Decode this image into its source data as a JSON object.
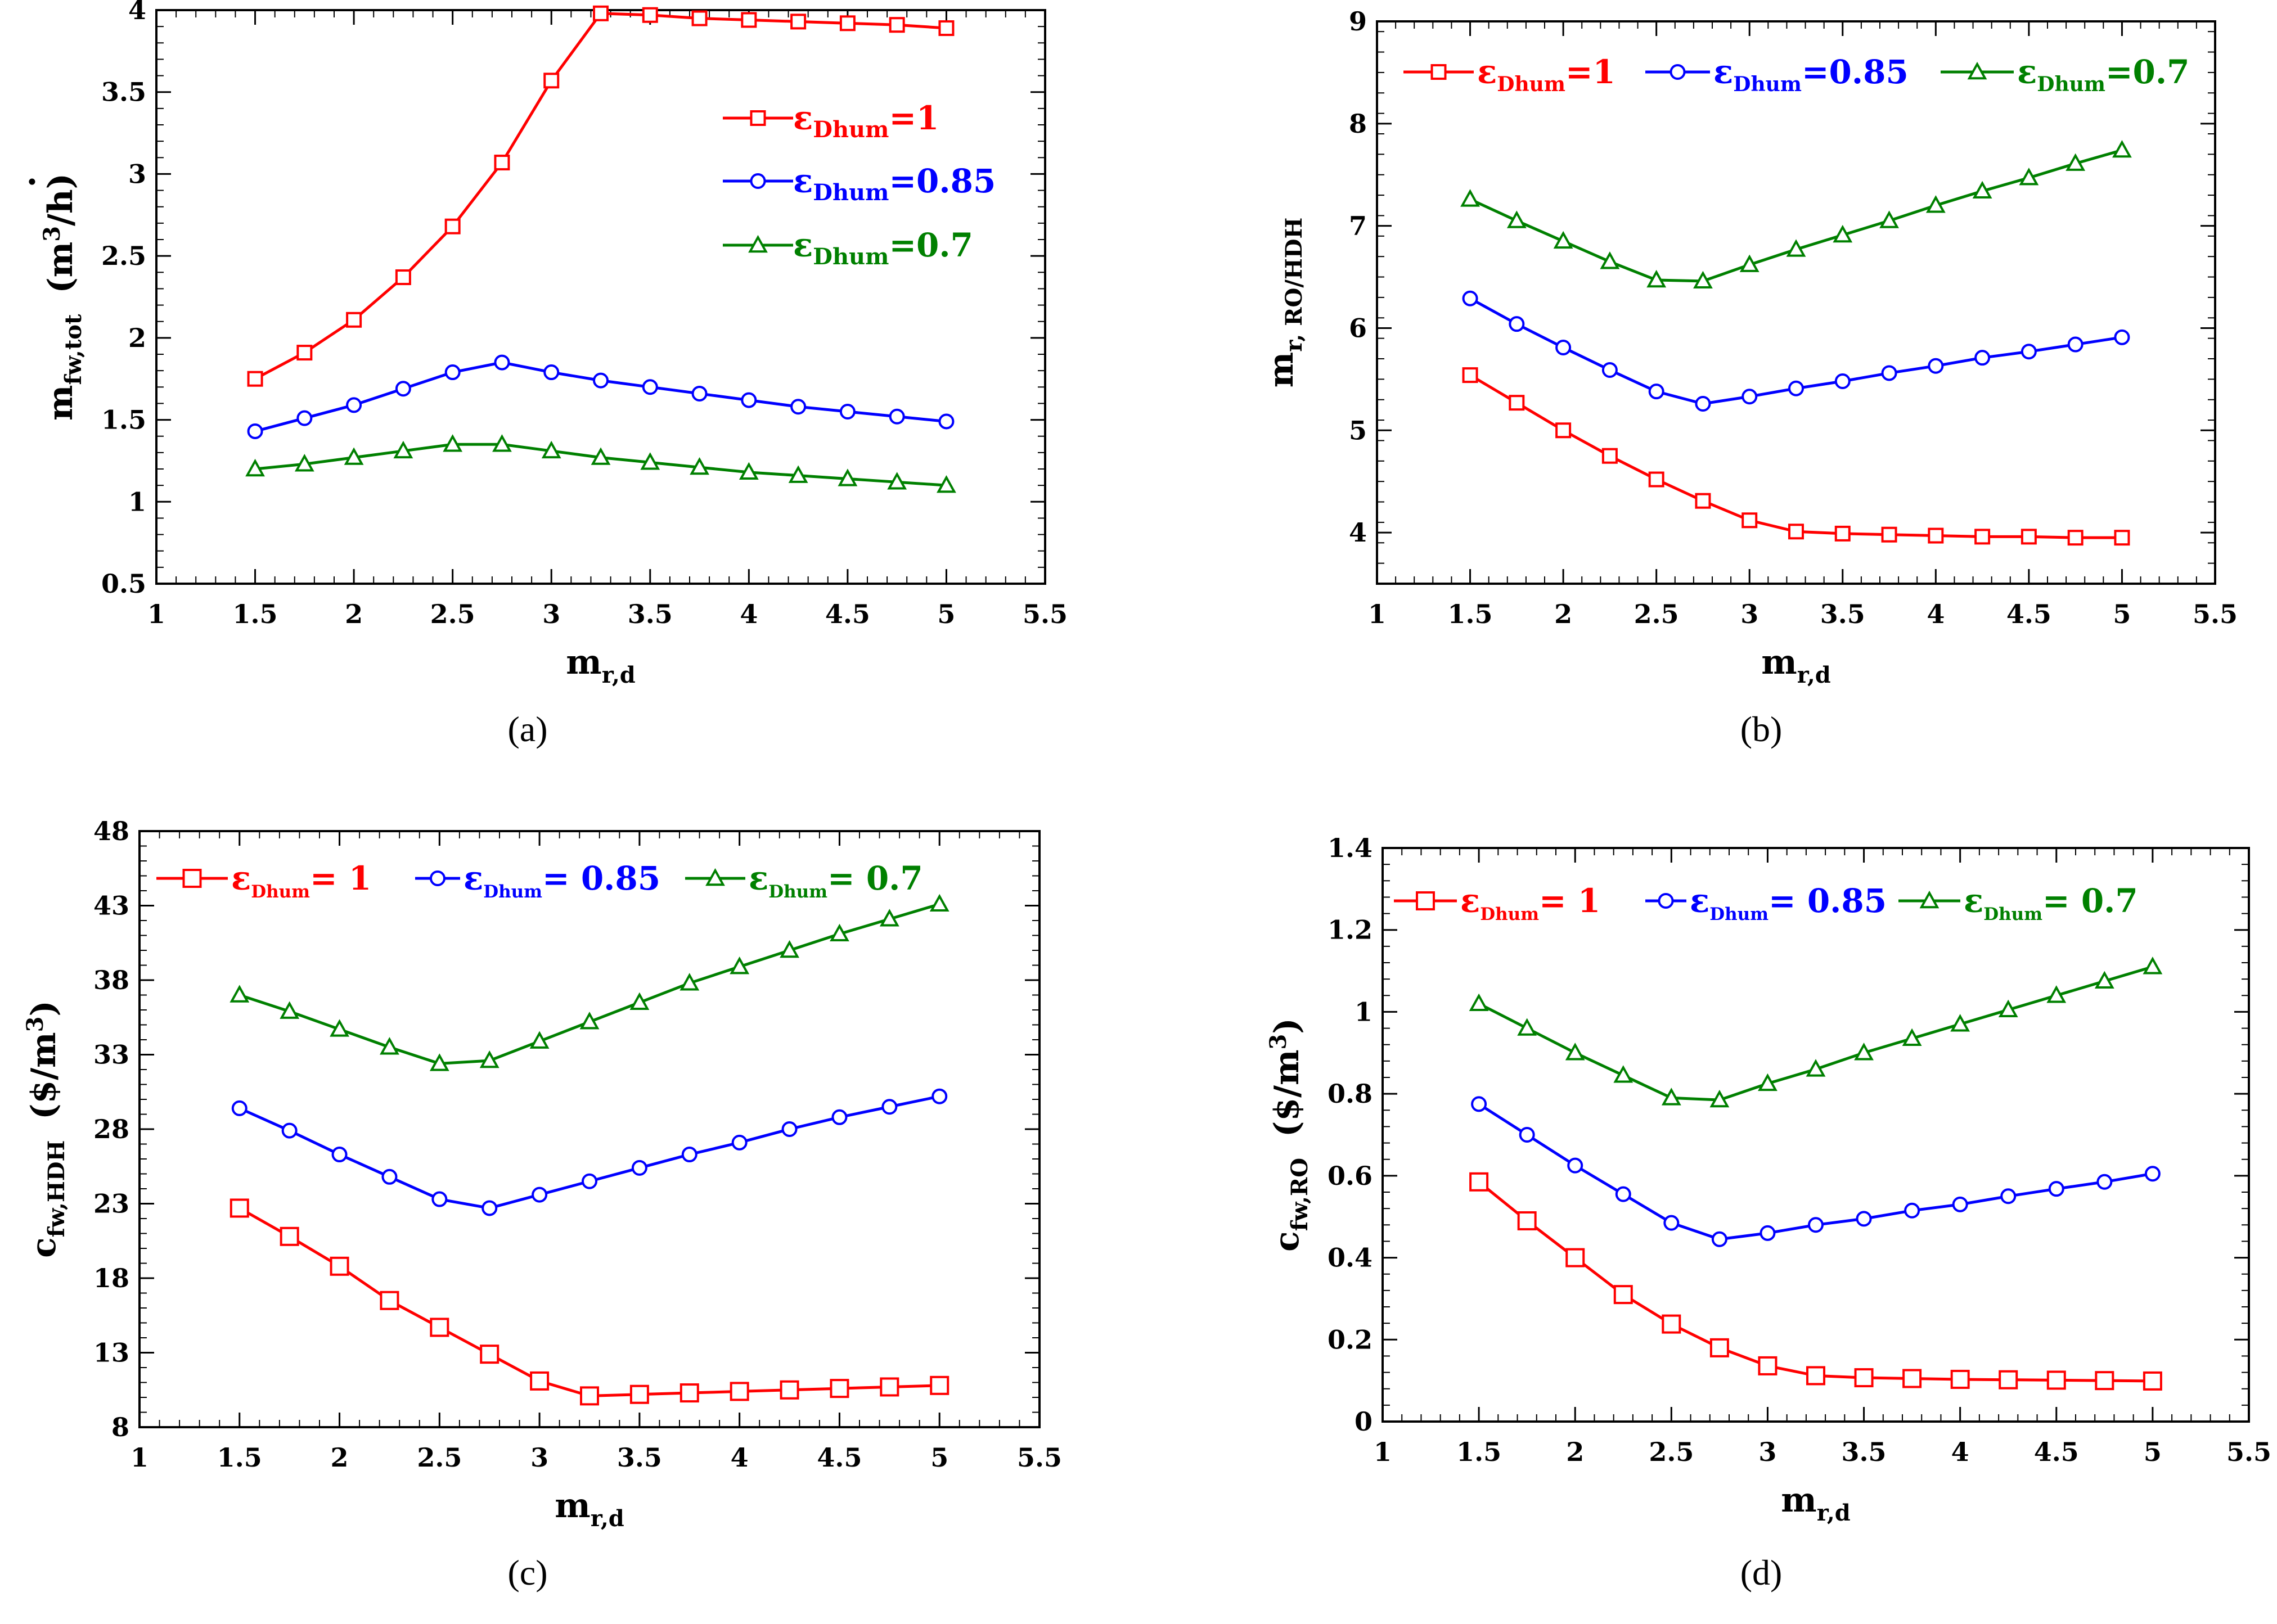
{
  "colors": {
    "s1": "#ff0000",
    "s2": "#0000ff",
    "s3": "#008000"
  },
  "chart_data": [
    {
      "id": "a",
      "type": "line",
      "panel_label": "(a)",
      "xlabel": {
        "main": "m",
        "sub": "r,d"
      },
      "ylabel": {
        "main": "m",
        "sub": "fw,tot",
        "unit_pre": "(m",
        "unit_sup": "3",
        "unit_post": "/h)",
        "dot": "·"
      },
      "xlim": [
        1,
        5.5
      ],
      "ylim": [
        0.5,
        4
      ],
      "xticks": [
        "1",
        "1.5",
        "2",
        "2.5",
        "3",
        "3.5",
        "4",
        "4.5",
        "5",
        "5.5"
      ],
      "yticks": [
        "0.5",
        "1",
        "1.5",
        "2",
        "2.5",
        "3",
        "3.5",
        "4"
      ],
      "legend_position": "right, stacked",
      "x": [
        1.5,
        1.75,
        2,
        2.25,
        2.5,
        2.75,
        3,
        3.25,
        3.5,
        3.75,
        4,
        4.25,
        4.5,
        4.75,
        5
      ],
      "series": [
        {
          "eps": "ε",
          "sub": "Dhum",
          "val": "=1",
          "marker": "square",
          "color_key": "s1",
          "values": [
            1.75,
            1.91,
            2.11,
            2.37,
            2.68,
            3.07,
            3.57,
            3.98,
            3.97,
            3.95,
            3.94,
            3.93,
            3.92,
            3.91,
            3.89
          ]
        },
        {
          "eps": "ε",
          "sub": "Dhum",
          "val": "=0.85",
          "marker": "circle",
          "color_key": "s2",
          "values": [
            1.43,
            1.51,
            1.59,
            1.69,
            1.79,
            1.85,
            1.79,
            1.74,
            1.7,
            1.66,
            1.62,
            1.58,
            1.55,
            1.52,
            1.49
          ]
        },
        {
          "eps": "ε",
          "sub": "Dhum",
          "val": "=0.7",
          "marker": "triangle",
          "color_key": "s3",
          "values": [
            1.2,
            1.23,
            1.27,
            1.31,
            1.35,
            1.35,
            1.31,
            1.27,
            1.24,
            1.21,
            1.18,
            1.16,
            1.14,
            1.12,
            1.1
          ]
        }
      ]
    },
    {
      "id": "b",
      "type": "line",
      "panel_label": "(b)",
      "xlabel": {
        "main": "m",
        "sub": "r,d"
      },
      "ylabel": {
        "main": "m",
        "sub": "r, RO/HDH"
      },
      "xlim": [
        1,
        5.5
      ],
      "ylim": [
        3.5,
        9
      ],
      "xticks": [
        "1",
        "1.5",
        "2",
        "2.5",
        "3",
        "3.5",
        "4",
        "4.5",
        "5",
        "5.5"
      ],
      "yticks": [
        "4",
        "5",
        "6",
        "7",
        "8",
        "9"
      ],
      "legend_position": "top, horizontal",
      "x": [
        1.5,
        1.75,
        2,
        2.25,
        2.5,
        2.75,
        3,
        3.25,
        3.5,
        3.75,
        4,
        4.25,
        4.5,
        4.75,
        5
      ],
      "series": [
        {
          "eps": "ε",
          "sub": "Dhum",
          "val": "=1",
          "marker": "square",
          "color_key": "s1",
          "values": [
            5.54,
            5.27,
            5.0,
            4.75,
            4.52,
            4.31,
            4.12,
            4.01,
            3.99,
            3.98,
            3.97,
            3.96,
            3.96,
            3.95,
            3.95
          ]
        },
        {
          "eps": "ε",
          "sub": "Dhum",
          "val": "=0.85",
          "marker": "circle",
          "color_key": "s2",
          "values": [
            6.29,
            6.04,
            5.81,
            5.59,
            5.38,
            5.26,
            5.33,
            5.41,
            5.48,
            5.56,
            5.63,
            5.71,
            5.77,
            5.84,
            5.91
          ]
        },
        {
          "eps": "ε",
          "sub": "Dhum",
          "val": "=0.7",
          "marker": "triangle",
          "color_key": "s3",
          "values": [
            7.26,
            7.05,
            6.85,
            6.65,
            6.47,
            6.46,
            6.62,
            6.77,
            6.91,
            7.05,
            7.2,
            7.34,
            7.47,
            7.61,
            7.74
          ]
        }
      ]
    },
    {
      "id": "c",
      "type": "line",
      "panel_label": "(c)",
      "xlabel": {
        "main": "m",
        "sub": "r,d"
      },
      "ylabel": {
        "main": "c",
        "sub": "fw,HDH",
        "unit_pre": "($/m",
        "unit_sup": "3",
        "unit_post": ")"
      },
      "xlim": [
        1,
        5.5
      ],
      "ylim": [
        8,
        48
      ],
      "xticks": [
        "1",
        "1.5",
        "2",
        "2.5",
        "3",
        "3.5",
        "4",
        "4.5",
        "5",
        "5.5"
      ],
      "yticks": [
        "8",
        "13",
        "18",
        "23",
        "28",
        "33",
        "38",
        "43",
        "48"
      ],
      "legend_position": "top, horizontal",
      "x": [
        1.5,
        1.75,
        2,
        2.25,
        2.5,
        2.75,
        3,
        3.25,
        3.5,
        3.75,
        4,
        4.25,
        4.5,
        4.75,
        5
      ],
      "series": [
        {
          "eps": "ε",
          "sub": "Dhum",
          "val": "= 1",
          "marker": "square-large",
          "color_key": "s1",
          "values": [
            22.7,
            20.8,
            18.8,
            16.5,
            14.7,
            12.9,
            11.1,
            10.1,
            10.2,
            10.3,
            10.4,
            10.5,
            10.6,
            10.7,
            10.8
          ]
        },
        {
          "eps": "ε",
          "sub": "Dhum",
          "val": "= 0.85",
          "marker": "circle",
          "color_key": "s2",
          "values": [
            29.4,
            27.9,
            26.3,
            24.8,
            23.3,
            22.7,
            23.6,
            24.5,
            25.4,
            26.3,
            27.1,
            28.0,
            28.8,
            29.5,
            30.2
          ]
        },
        {
          "eps": "ε",
          "sub": "Dhum",
          "val": "= 0.7",
          "marker": "triangle",
          "color_key": "s3",
          "values": [
            37.0,
            35.9,
            34.7,
            33.5,
            32.4,
            32.6,
            33.9,
            35.2,
            36.5,
            37.8,
            38.9,
            40.0,
            41.1,
            42.1,
            43.1
          ]
        }
      ]
    },
    {
      "id": "d",
      "type": "line",
      "panel_label": "(d)",
      "xlabel": {
        "main": "m",
        "sub": "r,d"
      },
      "ylabel": {
        "main": "c",
        "sub": "fw,RO",
        "unit_pre": "($/m",
        "unit_sup": "3",
        "unit_post": ")"
      },
      "xlim": [
        1,
        5.5
      ],
      "ylim": [
        0,
        1.4
      ],
      "xticks": [
        "1",
        "1.5",
        "2",
        "2.5",
        "3",
        "3.5",
        "4",
        "4.5",
        "5",
        "5.5"
      ],
      "yticks": [
        "0",
        "0.2",
        "0.4",
        "0.6",
        "0.8",
        "1",
        "1.2",
        "1.4"
      ],
      "legend_position": "top, horizontal",
      "x": [
        1.5,
        1.75,
        2,
        2.25,
        2.5,
        2.75,
        3,
        3.25,
        3.5,
        3.75,
        4,
        4.25,
        4.5,
        4.75,
        5
      ],
      "series": [
        {
          "eps": "ε",
          "sub": "Dhum",
          "val": "= 1",
          "marker": "square-large",
          "color_key": "s1",
          "values": [
            0.585,
            0.49,
            0.4,
            0.31,
            0.238,
            0.18,
            0.136,
            0.112,
            0.107,
            0.105,
            0.103,
            0.102,
            0.101,
            0.1,
            0.099
          ]
        },
        {
          "eps": "ε",
          "sub": "Dhum",
          "val": "= 0.85",
          "marker": "circle",
          "color_key": "s2",
          "values": [
            0.775,
            0.7,
            0.625,
            0.555,
            0.485,
            0.445,
            0.46,
            0.48,
            0.495,
            0.515,
            0.53,
            0.55,
            0.568,
            0.585,
            0.605
          ]
        },
        {
          "eps": "ε",
          "sub": "Dhum",
          "val": "= 0.7",
          "marker": "triangle",
          "color_key": "s3",
          "values": [
            1.02,
            0.96,
            0.9,
            0.845,
            0.79,
            0.785,
            0.825,
            0.86,
            0.9,
            0.935,
            0.97,
            1.005,
            1.04,
            1.075,
            1.11
          ]
        }
      ]
    }
  ]
}
